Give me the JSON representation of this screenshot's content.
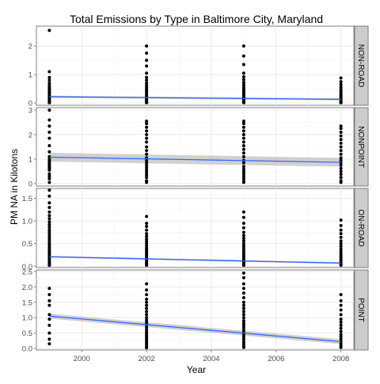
{
  "chart_data": {
    "type": "scatter",
    "title": "Total Emissions by Type in Baltimore City, Maryland",
    "xlabel": "Year",
    "ylabel": "PM NA  in Kilotons",
    "xlim": [
      1998.6,
      2008.4
    ],
    "x_ticks": [
      2000,
      2002,
      2004,
      2006,
      2008
    ],
    "grid": true,
    "smooth_line_color": "#3366ff",
    "band_color": "#bebebe",
    "point_color": "#000000",
    "strip_color": "#cccccc",
    "panels": [
      {
        "name": "NON-ROAD",
        "ylim": [
          -0.08,
          2.7
        ],
        "y_ticks": [
          0,
          1,
          2
        ],
        "trend": {
          "y_start": 0.22,
          "y_end": 0.13,
          "band_half_width": 0.04
        },
        "points": {
          "1999": [
            2.55,
            1.1,
            0.9,
            0.8,
            0.7,
            0.62,
            0.55,
            0.5,
            0.45,
            0.4,
            0.35,
            0.3,
            0.26,
            0.22,
            0.18,
            0.14,
            0.1,
            0.07,
            0.04,
            0.02,
            0.01
          ],
          "2002": [
            2.0,
            1.75,
            1.5,
            1.3,
            1.05,
            0.9,
            0.8,
            0.7,
            0.62,
            0.55,
            0.48,
            0.42,
            0.36,
            0.3,
            0.25,
            0.2,
            0.16,
            0.12,
            0.08,
            0.05,
            0.02,
            0.01
          ],
          "2005": [
            2.0,
            1.65,
            1.35,
            1.05,
            0.92,
            0.82,
            0.72,
            0.64,
            0.56,
            0.5,
            0.44,
            0.38,
            0.33,
            0.28,
            0.23,
            0.18,
            0.14,
            0.1,
            0.07,
            0.04,
            0.02,
            0.01
          ],
          "2008": [
            0.88,
            0.75,
            0.65,
            0.56,
            0.48,
            0.42,
            0.36,
            0.3,
            0.25,
            0.2,
            0.16,
            0.12,
            0.08,
            0.05,
            0.03,
            0.01
          ]
        }
      },
      {
        "name": "NONPOINT",
        "ylim": [
          -0.1,
          3.1
        ],
        "y_ticks": [
          0,
          1,
          2,
          3
        ],
        "trend": {
          "y_start": 1.08,
          "y_end": 0.87,
          "band_half_width": 0.18
        },
        "points": {
          "1999": [
            3.0,
            2.6,
            2.35,
            2.1,
            1.85,
            1.55,
            1.3,
            1.1,
            1.0,
            0.95,
            0.88,
            0.82,
            0.76,
            0.7,
            0.65,
            0.6,
            0.55,
            0.4,
            0.3,
            0.2,
            0.05
          ],
          "2002": [
            2.55,
            2.45,
            2.3,
            2.15,
            2.0,
            1.85,
            1.7,
            1.5,
            1.35,
            1.2,
            1.05,
            0.95,
            0.85,
            0.75,
            0.65,
            0.55,
            0.45,
            0.35,
            0.25,
            0.12,
            0.05
          ],
          "2005": [
            2.55,
            2.45,
            2.3,
            2.15,
            2.0,
            1.85,
            1.7,
            1.55,
            1.4,
            1.25,
            1.1,
            0.95,
            0.85,
            0.7,
            0.6,
            0.5,
            0.4,
            0.3,
            0.2,
            0.1,
            0.05
          ],
          "2008": [
            2.35,
            2.25,
            2.1,
            1.95,
            1.8,
            1.65,
            1.5,
            1.35,
            1.2,
            1.05,
            0.95,
            0.85,
            0.75,
            0.62,
            0.5,
            0.38,
            0.25,
            0.12,
            0.05
          ]
        }
      },
      {
        "name": "ON-ROAD",
        "ylim": [
          -0.03,
          1.72
        ],
        "y_ticks": [
          0.0,
          0.5,
          1.0,
          1.5
        ],
        "y_tick_labels": [
          "0.0",
          "0.5",
          "1.0",
          "1.5"
        ],
        "trend": {
          "y_start": 0.21,
          "y_end": 0.07,
          "band_half_width": 0.02
        },
        "points": {
          "1999": [
            1.68,
            1.55,
            1.4,
            1.3,
            1.2,
            1.12,
            1.05,
            0.98,
            0.92,
            0.86,
            0.8,
            0.75,
            0.7,
            0.65,
            0.6,
            0.55,
            0.5,
            0.46,
            0.42,
            0.38,
            0.34,
            0.3,
            0.26,
            0.22,
            0.18,
            0.14,
            0.1,
            0.07,
            0.04,
            0.02
          ],
          "2002": [
            1.1,
            0.95,
            0.88,
            0.8,
            0.72,
            0.66,
            0.6,
            0.55,
            0.5,
            0.45,
            0.4,
            0.36,
            0.32,
            0.28,
            0.24,
            0.2,
            0.16,
            0.12,
            0.08,
            0.05,
            0.02
          ],
          "2005": [
            1.2,
            1.08,
            0.95,
            0.85,
            0.75,
            0.68,
            0.62,
            0.56,
            0.5,
            0.45,
            0.4,
            0.35,
            0.3,
            0.26,
            0.22,
            0.18,
            0.14,
            0.1,
            0.07,
            0.04,
            0.02
          ],
          "2008": [
            1.02,
            0.9,
            0.8,
            0.72,
            0.64,
            0.56,
            0.5,
            0.44,
            0.38,
            0.33,
            0.28,
            0.24,
            0.2,
            0.16,
            0.12,
            0.09,
            0.06,
            0.04,
            0.02
          ]
        }
      },
      {
        "name": "POINT",
        "ylim": [
          -0.05,
          2.55
        ],
        "y_ticks": [
          0.0,
          0.5,
          1.0,
          1.5,
          2.0,
          2.5
        ],
        "y_tick_labels": [
          "0.0",
          "0.5",
          "1.0",
          "1.5",
          "2.0",
          "2.5"
        ],
        "trend": {
          "y_start": 1.05,
          "y_end": 0.22,
          "band_half_width": 0.08
        },
        "points": {
          "1999": [
            1.95,
            1.75,
            1.55,
            1.4,
            1.1,
            0.95,
            0.75,
            0.5,
            0.3,
            0.15
          ],
          "2002": [
            2.1,
            1.9,
            1.75,
            1.6,
            1.5,
            1.4,
            1.3,
            1.2,
            1.1,
            1.0,
            0.92,
            0.85,
            0.78,
            0.7,
            0.62,
            0.55,
            0.48,
            0.42,
            0.36,
            0.3,
            0.24,
            0.18,
            0.12,
            0.06,
            0.02
          ],
          "2005": [
            2.45,
            2.3,
            2.1,
            1.95,
            1.8,
            1.65,
            1.5,
            1.4,
            1.3,
            1.2,
            1.1,
            1.0,
            0.9,
            0.82,
            0.75,
            0.68,
            0.6,
            0.52,
            0.45,
            0.38,
            0.3,
            0.22,
            0.15,
            0.08,
            0.03
          ],
          "2008": [
            1.75,
            1.55,
            1.4,
            1.25,
            1.1,
            0.95,
            0.85,
            0.75,
            0.65,
            0.55,
            0.45,
            0.38,
            0.3,
            0.22,
            0.15,
            0.08,
            0.03
          ]
        }
      }
    ]
  }
}
